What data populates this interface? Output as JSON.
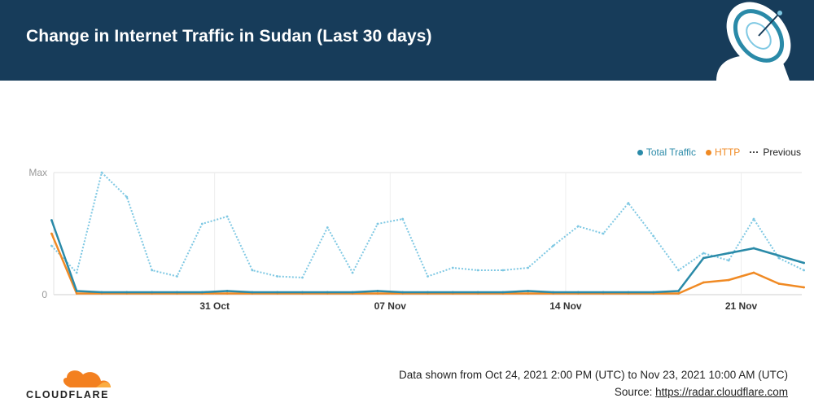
{
  "header": {
    "title": "Change in Internet Traffic in Sudan (Last 30 days)"
  },
  "legend": {
    "items": [
      {
        "label": "Total Traffic",
        "color": "#2a8aa8"
      },
      {
        "label": "HTTP",
        "color": "#f08a24"
      },
      {
        "label": "Previous",
        "color": "#444444"
      }
    ]
  },
  "chart_data": {
    "type": "line",
    "title": "Change in Internet Traffic in Sudan (Last 30 days)",
    "xlabel": "",
    "ylabel": "",
    "y_tick_labels": [
      "Max",
      "0"
    ],
    "ylim": [
      0,
      100
    ],
    "xlim": [
      "2021-10-24T14:00",
      "2021-11-23T10:00"
    ],
    "x_ticks": [
      {
        "date": "2021-10-31",
        "label": "31 Oct"
      },
      {
        "date": "2021-11-07",
        "label": "07 Nov"
      },
      {
        "date": "2021-11-14",
        "label": "14 Nov"
      },
      {
        "date": "2021-11-21",
        "label": "21 Nov"
      }
    ],
    "grid": true,
    "legend_position": "top-right",
    "series": [
      {
        "name": "Total Traffic",
        "color": "#2a8aa8",
        "style": "solid",
        "x": [
          "2021-10-24",
          "2021-10-25",
          "2021-10-26",
          "2021-10-27",
          "2021-10-28",
          "2021-10-29",
          "2021-10-30",
          "2021-10-31",
          "2021-11-01",
          "2021-11-02",
          "2021-11-03",
          "2021-11-04",
          "2021-11-05",
          "2021-11-06",
          "2021-11-07",
          "2021-11-08",
          "2021-11-09",
          "2021-11-10",
          "2021-11-11",
          "2021-11-12",
          "2021-11-13",
          "2021-11-14",
          "2021-11-15",
          "2021-11-16",
          "2021-11-17",
          "2021-11-18",
          "2021-11-19",
          "2021-11-20",
          "2021-11-21",
          "2021-11-22",
          "2021-11-23"
        ],
        "values": [
          61,
          3,
          2,
          2,
          2,
          2,
          2,
          3,
          2,
          2,
          2,
          2,
          2,
          3,
          2,
          2,
          2,
          2,
          2,
          3,
          2,
          2,
          2,
          2,
          2,
          3,
          30,
          34,
          38,
          32,
          26
        ]
      },
      {
        "name": "HTTP",
        "color": "#f08a24",
        "style": "solid",
        "x": [
          "2021-10-24",
          "2021-10-25",
          "2021-10-26",
          "2021-10-27",
          "2021-10-28",
          "2021-10-29",
          "2021-10-30",
          "2021-10-31",
          "2021-11-01",
          "2021-11-02",
          "2021-11-03",
          "2021-11-04",
          "2021-11-05",
          "2021-11-06",
          "2021-11-07",
          "2021-11-08",
          "2021-11-09",
          "2021-11-10",
          "2021-11-11",
          "2021-11-12",
          "2021-11-13",
          "2021-11-14",
          "2021-11-15",
          "2021-11-16",
          "2021-11-17",
          "2021-11-18",
          "2021-11-19",
          "2021-11-20",
          "2021-11-21",
          "2021-11-22",
          "2021-11-23"
        ],
        "values": [
          50,
          1,
          1,
          1,
          1,
          1,
          1,
          1,
          1,
          1,
          1,
          1,
          1,
          1,
          1,
          1,
          1,
          1,
          1,
          1,
          1,
          1,
          1,
          1,
          1,
          1,
          10,
          12,
          18,
          9,
          6
        ]
      },
      {
        "name": "Previous",
        "color": "#7ec8e3",
        "style": "dotted",
        "x": [
          "2021-10-24",
          "2021-10-25",
          "2021-10-26",
          "2021-10-27",
          "2021-10-28",
          "2021-10-29",
          "2021-10-30",
          "2021-10-31",
          "2021-11-01",
          "2021-11-02",
          "2021-11-03",
          "2021-11-04",
          "2021-11-05",
          "2021-11-06",
          "2021-11-07",
          "2021-11-08",
          "2021-11-09",
          "2021-11-10",
          "2021-11-11",
          "2021-11-12",
          "2021-11-13",
          "2021-11-14",
          "2021-11-15",
          "2021-11-16",
          "2021-11-17",
          "2021-11-18",
          "2021-11-19",
          "2021-11-20",
          "2021-11-21",
          "2021-11-22",
          "2021-11-23"
        ],
        "values": [
          40,
          18,
          100,
          80,
          20,
          15,
          58,
          64,
          20,
          15,
          14,
          55,
          18,
          58,
          62,
          15,
          22,
          20,
          20,
          22,
          40,
          56,
          50,
          75,
          48,
          20,
          34,
          28,
          62,
          30,
          20
        ]
      }
    ]
  },
  "footer": {
    "date_range": "Data shown from Oct 24, 2021 2:00 PM (UTC) to Nov 23, 2021 10:00 AM (UTC)",
    "source_label": "Source: ",
    "source_link": "https://radar.cloudflare.com"
  },
  "logo": {
    "text": "CLOUDFLARE",
    "cloud_color": "#f38020"
  }
}
